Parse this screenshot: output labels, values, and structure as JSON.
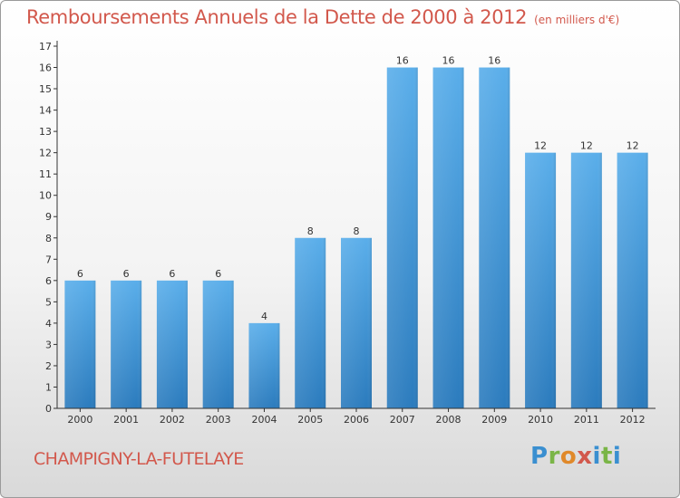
{
  "header": {
    "title": "Remboursements Annuels de la Dette de 2000 à 2012",
    "unit": "(en milliers d'€)"
  },
  "footer": {
    "commune": "CHAMPIGNY-LA-FUTELAYE",
    "logo_letters": [
      "P",
      "r",
      "o",
      "x",
      "i",
      "t",
      "i"
    ],
    "logo_colors": [
      "#3a8fd0",
      "#7ab547",
      "#e0892a",
      "#d2584c",
      "#3a8fd0",
      "#7ab547",
      "#3a8fd0"
    ]
  },
  "chart_data": {
    "type": "bar",
    "categories": [
      "2000",
      "2001",
      "2002",
      "2003",
      "2004",
      "2005",
      "2006",
      "2007",
      "2008",
      "2009",
      "2010",
      "2011",
      "2012"
    ],
    "values": [
      6,
      6,
      6,
      6,
      4,
      8,
      8,
      16,
      16,
      16,
      12,
      12,
      12
    ],
    "ylim": [
      0,
      17
    ],
    "yticks": [
      0,
      1,
      2,
      3,
      4,
      5,
      6,
      7,
      8,
      9,
      10,
      11,
      12,
      13,
      14,
      15,
      16,
      17
    ],
    "grid": false,
    "data_labels": true,
    "bar_color_top": "#5aaeea",
    "bar_color_bottom": "#2b7bbd",
    "axis_color": "#333333"
  }
}
